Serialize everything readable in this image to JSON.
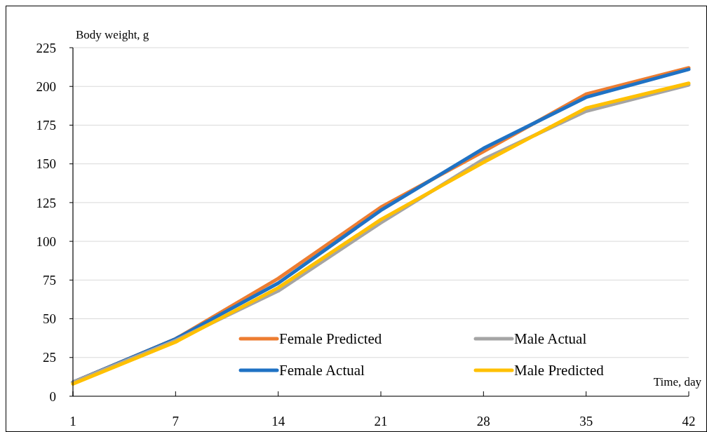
{
  "chart_data": {
    "type": "line",
    "xlabel": "Time, day",
    "ylabel": "Body weight, g",
    "categories": [
      "1",
      "7",
      "14",
      "21",
      "28",
      "35",
      "42"
    ],
    "series": [
      {
        "name": "Female Predicted",
        "color": "#ed7d31",
        "values": [
          9,
          37,
          76,
          122,
          158,
          195,
          212
        ]
      },
      {
        "name": "Female Actual",
        "color": "#1f72c4",
        "values": [
          9,
          37,
          73,
          120,
          160,
          193,
          211
        ]
      },
      {
        "name": "Male Actual",
        "color": "#a5a5a5",
        "values": [
          9,
          36,
          68,
          112,
          153,
          184,
          201
        ]
      },
      {
        "name": "Male Predicted",
        "color": "#ffc000",
        "values": [
          8,
          35,
          70,
          114,
          151,
          186,
          202
        ]
      }
    ],
    "ylim": [
      0,
      225
    ],
    "yticks": [
      0,
      25,
      50,
      75,
      100,
      125,
      150,
      175,
      200,
      225
    ],
    "grid": "y",
    "legend": "bottom",
    "marker": "none",
    "line_style": "solid"
  }
}
